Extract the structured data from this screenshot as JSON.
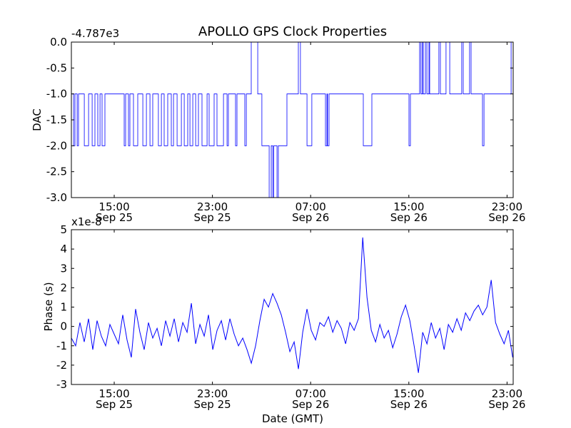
{
  "title": "APOLLO GPS Clock Properties",
  "xlabel": "Date (GMT)",
  "x_ticks": [
    {
      "hour": 15,
      "time": "15:00",
      "date": "Sep 25"
    },
    {
      "hour": 23,
      "time": "23:00",
      "date": "Sep 25"
    },
    {
      "hour": 31,
      "time": "07:00",
      "date": "Sep 26"
    },
    {
      "hour": 39,
      "time": "15:00",
      "date": "Sep 26"
    },
    {
      "hour": 47,
      "time": "23:00",
      "date": "Sep 26"
    }
  ],
  "chart_data": [
    {
      "type": "line",
      "name": "dac",
      "ylabel": "DAC",
      "offset_label": "-4.787e3",
      "x_units": "hours since 00:00 Sep 25 (GMT)",
      "xlim": [
        11.51,
        47.5
      ],
      "ylim": [
        -3.0,
        0.0
      ],
      "y_ticks": [
        "0.0",
        "-0.5",
        "-1.0",
        "-1.5",
        "-2.0",
        "-2.5",
        "-3.0"
      ],
      "y_tick_values": [
        0,
        -0.5,
        -1,
        -1.5,
        -2,
        -2.5,
        -3
      ],
      "color": "#0000ff",
      "step": true,
      "points": [
        [
          11.51,
          -1
        ],
        [
          11.69,
          -2
        ],
        [
          11.8,
          -1
        ],
        [
          11.98,
          -2
        ],
        [
          12.09,
          -1
        ],
        [
          12.56,
          -2
        ],
        [
          12.91,
          -1
        ],
        [
          13.2,
          -2
        ],
        [
          13.43,
          -1
        ],
        [
          13.66,
          -2
        ],
        [
          13.84,
          -1
        ],
        [
          14.01,
          -2
        ],
        [
          14.24,
          -1
        ],
        [
          15.81,
          -2
        ],
        [
          15.93,
          -1
        ],
        [
          16.16,
          -2
        ],
        [
          16.28,
          -1
        ],
        [
          16.57,
          -2
        ],
        [
          16.92,
          -1
        ],
        [
          17.33,
          -2
        ],
        [
          17.62,
          -1
        ],
        [
          17.91,
          -2
        ],
        [
          18.14,
          -1
        ],
        [
          18.6,
          -2
        ],
        [
          18.84,
          -1
        ],
        [
          19.07,
          -2
        ],
        [
          19.36,
          -1
        ],
        [
          19.65,
          -2
        ],
        [
          19.83,
          -1
        ],
        [
          20.12,
          -2
        ],
        [
          20.47,
          -1
        ],
        [
          20.7,
          -2
        ],
        [
          20.99,
          -1
        ],
        [
          21.17,
          -2
        ],
        [
          21.4,
          -1
        ],
        [
          21.63,
          -2
        ],
        [
          21.86,
          -1
        ],
        [
          22.15,
          -2
        ],
        [
          22.56,
          -1
        ],
        [
          22.73,
          -2
        ],
        [
          23.14,
          -1
        ],
        [
          23.37,
          -2
        ],
        [
          23.9,
          -1
        ],
        [
          24.19,
          -2
        ],
        [
          24.3,
          -1
        ],
        [
          24.88,
          -2
        ],
        [
          25.0,
          -1
        ],
        [
          25.64,
          -2
        ],
        [
          25.76,
          -1
        ],
        [
          26.16,
          0
        ],
        [
          26.69,
          -1
        ],
        [
          27.03,
          -2
        ],
        [
          27.62,
          -3
        ],
        [
          27.79,
          -2
        ],
        [
          27.91,
          -3
        ],
        [
          28.0,
          -2
        ],
        [
          28.26,
          -3
        ],
        [
          28.37,
          -2
        ],
        [
          29.07,
          -1
        ],
        [
          30.0,
          0
        ],
        [
          30.17,
          -1
        ],
        [
          30.7,
          -2
        ],
        [
          31.1,
          -1
        ],
        [
          32.21,
          -2
        ],
        [
          32.33,
          -1
        ],
        [
          32.38,
          -2
        ],
        [
          32.5,
          -1
        ],
        [
          35.29,
          -2
        ],
        [
          35.99,
          -1
        ],
        [
          39.01,
          -2
        ],
        [
          39.13,
          -1
        ],
        [
          39.88,
          0
        ],
        [
          39.99,
          -1
        ],
        [
          40.11,
          0
        ],
        [
          40.17,
          -1
        ],
        [
          40.35,
          0
        ],
        [
          40.47,
          -1
        ],
        [
          40.64,
          0
        ],
        [
          40.7,
          -1
        ],
        [
          41.45,
          0
        ],
        [
          41.57,
          -1
        ],
        [
          42.03,
          0
        ],
        [
          42.33,
          -1
        ],
        [
          43.31,
          0
        ],
        [
          43.43,
          -1
        ],
        [
          43.95,
          0
        ],
        [
          44.07,
          -1
        ],
        [
          45.0,
          -2
        ],
        [
          45.12,
          -1
        ],
        [
          47.33,
          0
        ],
        [
          47.5,
          0
        ]
      ]
    },
    {
      "type": "line",
      "name": "phase",
      "ylabel": "Phase (s)",
      "offset_label": "x1e-8",
      "x_units": "hours since 00:00 Sep 25 (GMT)",
      "xlim": [
        11.51,
        47.5
      ],
      "ylim": [
        -3,
        5
      ],
      "y_ticks": [
        "5",
        "4",
        "3",
        "2",
        "1",
        "0",
        "-1",
        "-2",
        "-3"
      ],
      "y_tick_values": [
        5,
        4,
        3,
        2,
        1,
        0,
        -1,
        -2,
        -3
      ],
      "color": "#0000ff",
      "x_start": 11.51,
      "x_step": 0.349,
      "values": [
        -0.6,
        -1.0,
        0.2,
        -0.8,
        0.4,
        -1.2,
        0.3,
        -0.5,
        -1.0,
        0.1,
        -0.4,
        -0.9,
        0.6,
        -0.7,
        -1.6,
        0.9,
        -0.3,
        -1.2,
        0.2,
        -0.6,
        -0.1,
        -1.0,
        0.3,
        -0.5,
        0.4,
        -0.8,
        0.2,
        -0.3,
        1.2,
        -0.9,
        0.1,
        -0.5,
        0.6,
        -1.2,
        -0.2,
        0.3,
        -0.7,
        0.4,
        -0.4,
        -1.0,
        -0.6,
        -1.2,
        -1.9,
        -1.0,
        0.3,
        1.4,
        1.0,
        1.7,
        1.2,
        0.6,
        -0.3,
        -1.3,
        -0.8,
        -2.2,
        -0.3,
        0.9,
        -0.2,
        -0.7,
        0.2,
        0.0,
        0.5,
        -0.3,
        0.3,
        -0.1,
        -0.9,
        0.2,
        -0.2,
        0.4,
        4.6,
        1.5,
        -0.2,
        -0.8,
        0.1,
        -0.6,
        -0.2,
        -1.1,
        -0.4,
        0.5,
        1.1,
        0.3,
        -1.0,
        -2.4,
        -0.3,
        -0.9,
        0.2,
        -0.6,
        -0.1,
        -1.2,
        0.1,
        -0.3,
        0.4,
        -0.2,
        0.7,
        0.3,
        0.8,
        1.1,
        0.6,
        1.0,
        2.4,
        0.2,
        -0.4,
        -0.9,
        -0.2,
        -1.6
      ]
    }
  ]
}
